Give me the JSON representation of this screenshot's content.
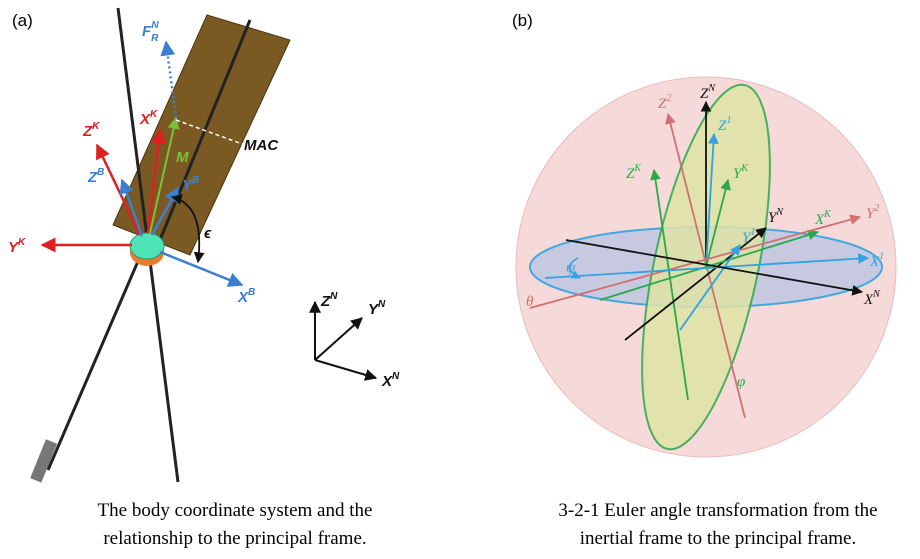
{
  "panel_a": {
    "label": "(a)",
    "force_label": {
      "text": "F",
      "sup": "N",
      "sub": "R"
    },
    "mac_label": "MAC",
    "moment_label": "M",
    "angle_label": "ϵ",
    "body_axes": [
      {
        "text": "Z",
        "sup": "K"
      },
      {
        "text": "X",
        "sup": "K"
      },
      {
        "text": "Z",
        "sup": "B"
      },
      {
        "text": "Y",
        "sup": "B"
      },
      {
        "text": "Y",
        "sup": "K"
      },
      {
        "text": "X",
        "sup": "B"
      }
    ],
    "inertial_axes": [
      {
        "text": "Z",
        "sup": "N"
      },
      {
        "text": "Y",
        "sup": "N"
      },
      {
        "text": "X",
        "sup": "N"
      }
    ],
    "caption": [
      "The body coordinate system and the",
      "relationship to the principal frame."
    ]
  },
  "panel_b": {
    "label": "(b)",
    "axes": [
      {
        "text": "Z",
        "sup": "N"
      },
      {
        "text": "Z",
        "sup": "2"
      },
      {
        "text": "Z",
        "sup": "1"
      },
      {
        "text": "Z",
        "sup": "K"
      },
      {
        "text": "Y",
        "sup": "K"
      },
      {
        "text": "Y",
        "sup": "N"
      },
      {
        "text": "X",
        "sup": "K"
      },
      {
        "text": "Y",
        "sup": "2"
      },
      {
        "text": "Y",
        "sup": "1"
      },
      {
        "text": "X",
        "sup": "1"
      },
      {
        "text": "X",
        "sup": "N"
      }
    ],
    "angles": [
      "ψ",
      "θ",
      "φ"
    ],
    "caption": [
      "3-2-1 Euler angle transformation from the",
      "inertial frame to the principal frame."
    ]
  }
}
